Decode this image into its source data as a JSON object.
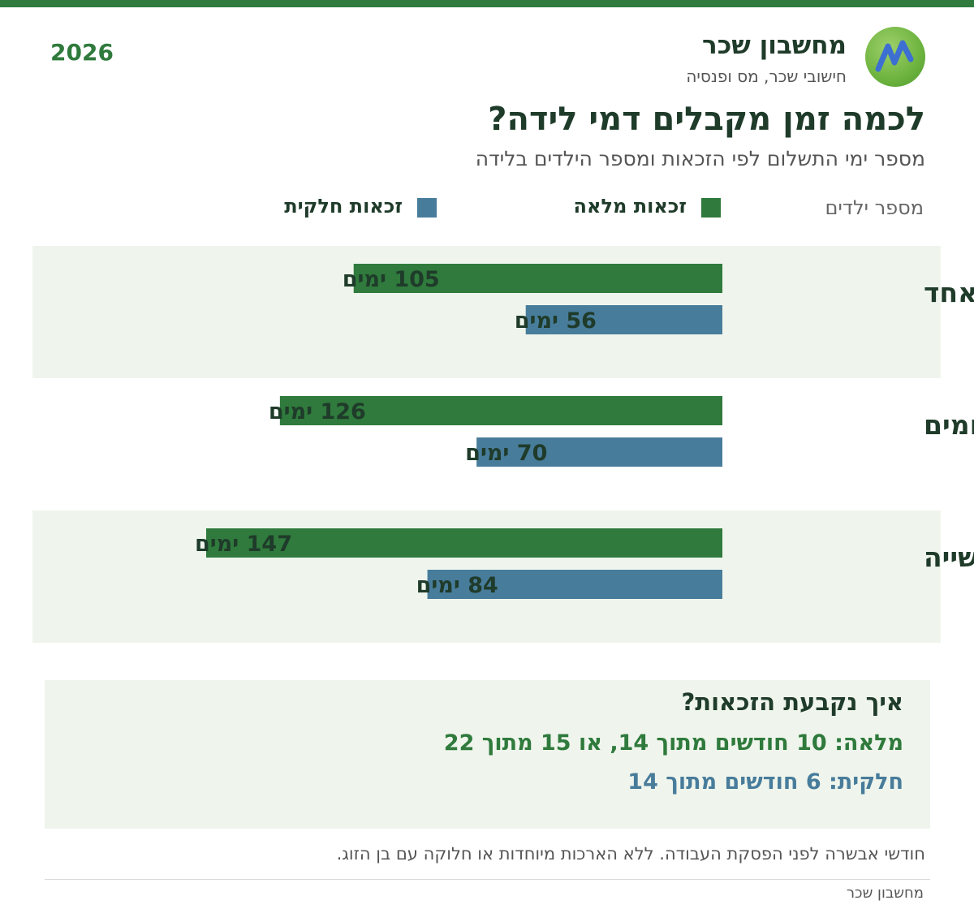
{
  "header": {
    "brand_title": "מחשבון שכר",
    "brand_subtitle": "חישובי שכר, מס ופנסיה",
    "year": "2026",
    "title": "לכמה זמן מקבלים דמי לידה?",
    "subtitle": "מספר ימי התשלום לפי הזכאות ומספר הילדים בלידה",
    "children_label": "מספר ילדים"
  },
  "legend": [
    {
      "label": "זכאות מלאה",
      "color": "#2f7a3c"
    },
    {
      "label": "זכאות חלקית",
      "color": "#487c9b"
    }
  ],
  "chart_data": {
    "type": "bar",
    "orientation": "horizontal",
    "categories": [
      "ילד אחד",
      "תאומים",
      "שלישייה"
    ],
    "series": [
      {
        "name": "זכאות מלאה",
        "values": [
          105,
          126,
          147
        ],
        "color": "#2f7a3c"
      },
      {
        "name": "זכאות חלקית",
        "values": [
          56,
          70,
          84
        ],
        "color": "#487c9b"
      }
    ],
    "value_labels": [
      [
        "105 ימים",
        "126 ימים",
        "147 ימים"
      ],
      [
        "56 ימים",
        "70 ימים",
        "84 ימים"
      ]
    ],
    "unit": "ימים",
    "title": "לכמה זמן מקבלים דמי לידה?",
    "xlabel": "",
    "ylabel": "מספר ילדים",
    "xlim": [
      0,
      147
    ],
    "grid": false,
    "legend_position": "top"
  },
  "note": {
    "title": "איך נקבעת הזכאות?",
    "full_label": "מלאה:",
    "full_text": "10 חודשים מתוך 14, או 15 מתוך 22",
    "partial_label": "חלקית:",
    "partial_text": "6 חודשים מתוך 14"
  },
  "footnote": "חודשי אבשרה לפני הפסקת העבודה. ללא הארכות מיוחדות או חלוקה עם בן הזוג.",
  "footer": "מחשבון שכר",
  "colors": {
    "accent": "#2f7a3c",
    "partial": "#487c9b",
    "band": "#eff5ec",
    "dark_text": "#1f3b2a"
  }
}
